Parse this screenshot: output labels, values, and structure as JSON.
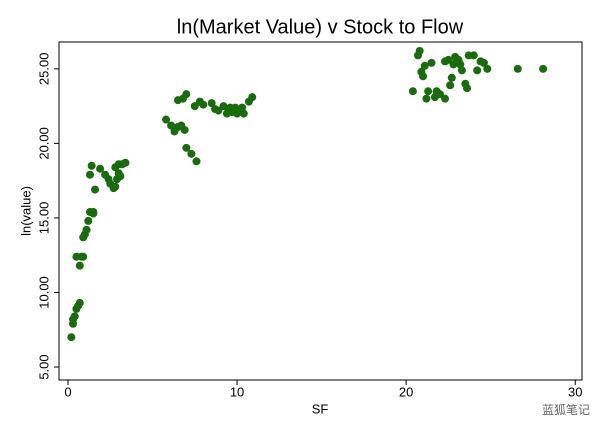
{
  "chart_data": {
    "type": "scatter",
    "title": "ln(Market Value) v Stock to Flow",
    "x_label": "SF",
    "y_label": "ln(value)",
    "color": "#1a6a0e",
    "x": [
      0.2,
      0.3,
      0.3,
      0.4,
      0.5,
      0.6,
      0.7,
      0.5,
      0.7,
      0.8,
      0.9,
      0.9,
      1.0,
      1.1,
      1.2,
      1.3,
      1.5,
      1.5,
      1.3,
      1.4,
      1.6,
      1.9,
      2.2,
      2.4,
      2.5,
      2.7,
      2.8,
      2.9,
      3.0,
      2.8,
      3.0,
      3.1,
      3.2,
      3.4,
      5.8,
      6.1,
      6.3,
      6.5,
      6.7,
      6.9,
      6.5,
      6.8,
      7.0,
      7.0,
      7.3,
      7.6,
      7.5,
      7.8,
      8.0,
      8.5,
      8.7,
      8.9,
      9.2,
      9.4,
      9.6,
      9.7,
      9.9,
      10.0,
      10.1,
      10.3,
      10.4,
      10.7,
      10.9,
      9.5,
      20.4,
      20.7,
      20.8,
      20.9,
      21.0,
      21.1,
      21.2,
      21.3,
      21.5,
      21.7,
      21.8,
      22.0,
      22.3,
      22.3,
      22.5,
      22.6,
      22.7,
      22.8,
      22.9,
      23.1,
      23.2,
      23.3,
      23.5,
      23.6,
      23.7,
      24.0,
      24.2,
      24.4,
      24.6,
      24.8,
      26.6,
      28.1
    ],
    "values": [
      7.0,
      7.9,
      8.2,
      8.4,
      8.9,
      9.1,
      9.3,
      12.4,
      11.8,
      12.4,
      12.4,
      13.7,
      13.9,
      14.2,
      14.8,
      15.4,
      15.3,
      15.4,
      17.9,
      18.5,
      16.9,
      18.3,
      17.9,
      17.6,
      17.3,
      17.0,
      17.1,
      17.6,
      18.0,
      18.4,
      18.6,
      17.8,
      18.6,
      18.7,
      21.6,
      21.2,
      20.8,
      21.1,
      21.2,
      20.9,
      22.9,
      23.0,
      23.3,
      19.7,
      19.3,
      18.8,
      22.5,
      22.8,
      22.6,
      22.7,
      22.3,
      22.2,
      22.5,
      22.0,
      22.4,
      22.1,
      22.4,
      22.0,
      22.2,
      22.4,
      22.0,
      22.8,
      23.1,
      22.2,
      23.5,
      25.9,
      26.2,
      24.8,
      24.5,
      25.2,
      23.0,
      23.5,
      25.4,
      23.1,
      23.5,
      23.3,
      23.0,
      25.5,
      25.6,
      23.9,
      24.4,
      25.3,
      25.8,
      25.6,
      25.3,
      24.9,
      24.0,
      23.7,
      25.9,
      25.9,
      24.9,
      25.5,
      25.4,
      25.0,
      25.0,
      25.0
    ],
    "xlim": [
      -0.53,
      30.4
    ],
    "xticks": [
      0,
      10,
      20,
      30
    ],
    "ylim": [
      4.13,
      26.8
    ],
    "yticks": [
      {
        "value": 5,
        "label": "5.00"
      },
      {
        "value": 10,
        "label": "10.00"
      },
      {
        "value": 15,
        "label": "15.00"
      },
      {
        "value": 20,
        "label": "20.00"
      },
      {
        "value": 25,
        "label": "25.00"
      }
    ],
    "grid": false,
    "watermark": "蓝狐笔记"
  }
}
